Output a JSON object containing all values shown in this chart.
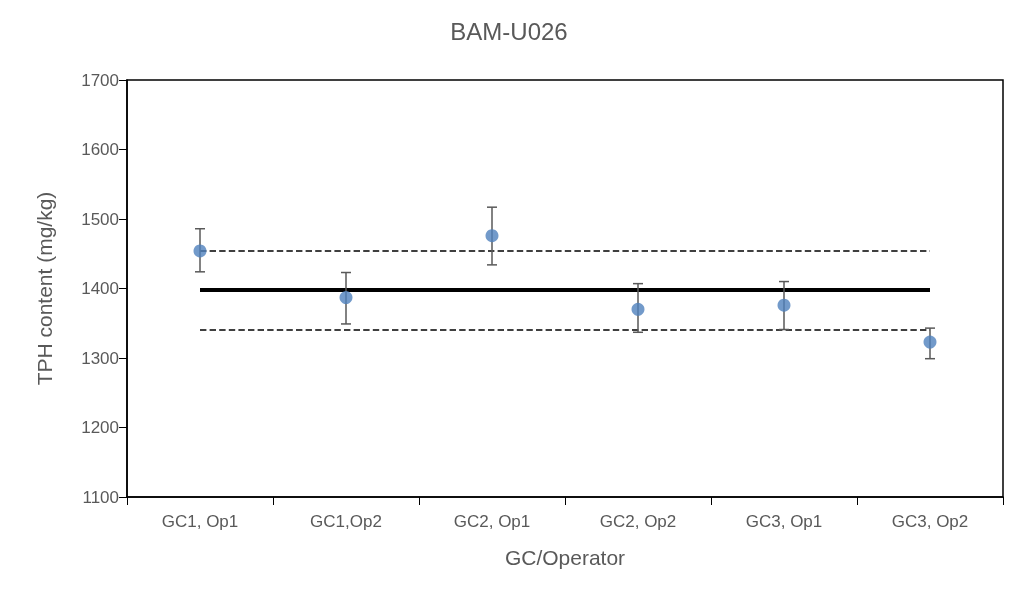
{
  "chart_data": {
    "type": "scatter",
    "title": "BAM-U026",
    "xlabel": "GC/Operator",
    "ylabel": "TPH content (mg/kg)",
    "categories": [
      "GC1, Op1",
      "GC1,Op2",
      "GC2, Op1",
      "GC2, Op2",
      "GC3, Op1",
      "GC3, Op2"
    ],
    "series": [
      {
        "color": "#4f81bd",
        "values": [
          1454,
          1387,
          1476,
          1370,
          1376,
          1323
        ],
        "errors": [
          [
            1424,
            1486
          ],
          [
            1349,
            1423
          ],
          [
            1434,
            1517
          ],
          [
            1337,
            1407
          ],
          [
            1341,
            1410
          ],
          [
            1299,
            1343
          ]
        ]
      }
    ],
    "ylim": [
      1100,
      1700
    ],
    "yticks": [
      1100,
      1200,
      1300,
      1400,
      1500,
      1600,
      1700
    ],
    "marker": "circle",
    "grid": false,
    "ref_lines": [
      {
        "axis": "y",
        "value": 1398,
        "color": "#000000",
        "line_style": "solid"
      },
      {
        "axis": "y",
        "value": 1454,
        "color": "#000000",
        "line_style": "dashed"
      },
      {
        "axis": "y",
        "value": 1341,
        "color": "#000000",
        "line_style": "dashed"
      }
    ]
  }
}
